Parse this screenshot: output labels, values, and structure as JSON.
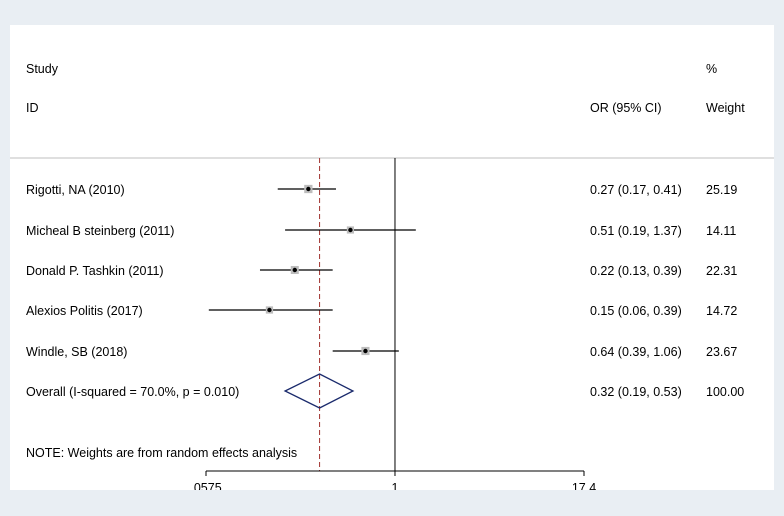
{
  "chart_data": {
    "type": "forest",
    "headers": {
      "study_line1": "Study",
      "study_line2": "ID",
      "or_header": "OR (95% CI)",
      "weight_line1": "%",
      "weight_line2": "Weight"
    },
    "studies": [
      {
        "label": "Rigotti, NA (2010)",
        "or": 0.27,
        "lo": 0.17,
        "hi": 0.41,
        "or_text": "0.27 (0.17, 0.41)",
        "weight": "25.19"
      },
      {
        "label": "Micheal B steinberg (2011)",
        "or": 0.51,
        "lo": 0.19,
        "hi": 1.37,
        "or_text": "0.51 (0.19, 1.37)",
        "weight": "14.11"
      },
      {
        "label": "Donald P. Tashkin (2011)",
        "or": 0.22,
        "lo": 0.13,
        "hi": 0.39,
        "or_text": "0.22 (0.13, 0.39)",
        "weight": "22.31"
      },
      {
        "label": "Alexios Politis (2017)",
        "or": 0.15,
        "lo": 0.06,
        "hi": 0.39,
        "or_text": "0.15 (0.06, 0.39)",
        "weight": "14.72"
      },
      {
        "label": "Windle, SB (2018)",
        "or": 0.64,
        "lo": 0.39,
        "hi": 1.06,
        "or_text": "0.64 (0.39, 1.06)",
        "weight": "23.67"
      }
    ],
    "overall": {
      "label": "Overall  (I-squared = 70.0%, p = 0.010)",
      "or": 0.32,
      "lo": 0.19,
      "hi": 0.53,
      "or_text": "0.32 (0.19, 0.53)",
      "weight": "100.00"
    },
    "note": "NOTE: Weights are from random effects analysis",
    "x_scale": "log",
    "xlim": [
      0.0575,
      17.4
    ],
    "ticks": [
      {
        "value": 0.0575,
        "label": ".0575"
      },
      {
        "value": 1,
        "label": "1"
      },
      {
        "value": 17.4,
        "label": "17.4"
      }
    ],
    "null_line": 1,
    "reference_line": 0.32
  }
}
